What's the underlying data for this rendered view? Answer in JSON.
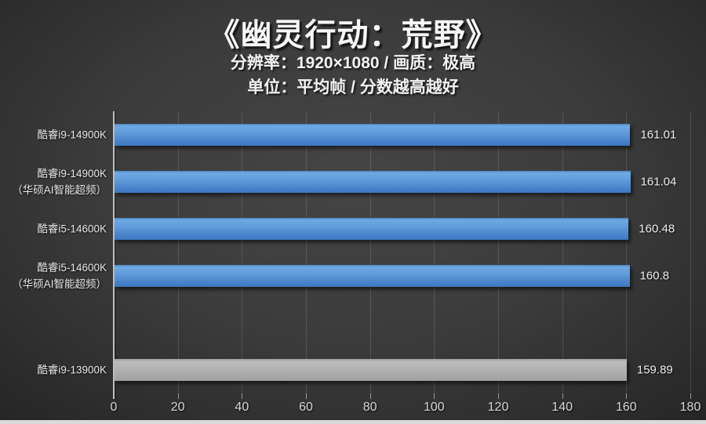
{
  "header": {
    "title": "《幽灵行动：荒野》",
    "subtitle1": "分辨率：1920×1080 / 画质：极高",
    "subtitle2": "单位：平均帧 / 分数越高越好"
  },
  "chart_data": {
    "type": "bar",
    "orientation": "horizontal",
    "title": "《幽灵行动：荒野》",
    "categories": [
      "酷睿i9-14900K",
      "酷睿i9-14900K（华硕AI智能超频）",
      "酷睿i5-14600K",
      "酷睿i5-14600K（华硕AI智能超频）",
      "酷睿i9-13900K"
    ],
    "values": [
      161.01,
      161.04,
      160.48,
      160.8,
      159.89
    ],
    "xlim": [
      0,
      180
    ],
    "xticks": [
      0,
      20,
      40,
      60,
      80,
      100,
      120,
      140,
      160,
      180
    ],
    "grid": true,
    "legend": "none",
    "bars": [
      {
        "label_line1": "酷睿i9-14900K",
        "label_line2": "",
        "value": 161.01,
        "display": "161.01",
        "color": "blue",
        "slot": 0
      },
      {
        "label_line1": "酷睿i9-14900K",
        "label_line2": "（华硕AI智能超频）",
        "value": 161.04,
        "display": "161.04",
        "color": "blue",
        "slot": 1
      },
      {
        "label_line1": "酷睿i5-14600K",
        "label_line2": "",
        "value": 160.48,
        "display": "160.48",
        "color": "blue",
        "slot": 2
      },
      {
        "label_line1": "酷睿i5-14600K",
        "label_line2": "（华硕AI智能超频）",
        "value": 160.8,
        "display": "160.8",
        "color": "blue",
        "slot": 3
      },
      {
        "label_line1": "酷睿i9-13900K",
        "label_line2": "",
        "value": 159.89,
        "display": "159.89",
        "color": "gray",
        "slot": 5
      }
    ],
    "total_slots": 6
  },
  "colors": {
    "blue_bar": "#4a85cc",
    "gray_bar": "#ababab",
    "background": "#3a3a3a",
    "grid_line": "#5d5d5d",
    "axis_line": "#c2c2c2",
    "text": "#ececec",
    "bottom_strip": "#d9d9d9"
  }
}
